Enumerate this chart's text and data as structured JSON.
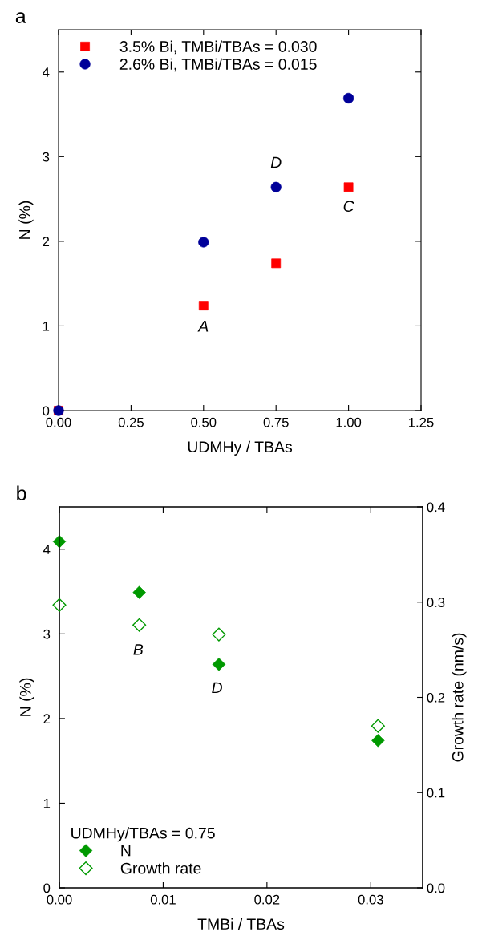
{
  "chart_data": [
    {
      "type": "scatter",
      "title": "a",
      "xlabel": "UDMHy / TBAs",
      "ylabel": "N (%)",
      "xlim": [
        0,
        1.25
      ],
      "xticks": [
        "0.00",
        0.25,
        "0.50",
        0.75,
        "1.00",
        1.25
      ],
      "ylim": [
        0,
        4.5
      ],
      "yticks": [
        0,
        1,
        2,
        3,
        4
      ],
      "legend": "top left",
      "grid": false,
      "series": [
        {
          "name": "3.5% Bi, TMBi/TBAs = 0.030",
          "color": "#ff0000",
          "marker": "square",
          "x": [
            0,
            0.5,
            0.75,
            1.0
          ],
          "values": [
            0,
            1.24,
            1.74,
            2.64
          ]
        },
        {
          "name": "2.6% Bi, TMBi/TBAs = 0.015",
          "color": "#000099",
          "marker": "circle",
          "x": [
            0,
            0.5,
            0.75,
            1.0
          ],
          "values": [
            0,
            1.99,
            2.64,
            3.69
          ]
        }
      ],
      "annotations": [
        "A",
        "D",
        "C"
      ]
    },
    {
      "type": "scatter",
      "title": "b",
      "xlabel": "TMBi / TBAs",
      "ylabel": "N (%)",
      "y2label": "Growth rate (nm/s)",
      "xlim": [
        0,
        0.035
      ],
      "xticks": [
        "0.00",
        0.01,
        0.02,
        0.03
      ],
      "ylim": [
        0,
        4.5
      ],
      "yticks": [
        0,
        1,
        2,
        3,
        4
      ],
      "y2lim": [
        0,
        0.4
      ],
      "y2ticks": [
        "0.0",
        0.1,
        0.2,
        0.3,
        0.4
      ],
      "legend": "bottom left",
      "legend_title": "UDMHy/TBAs = 0.75",
      "grid": false,
      "series": [
        {
          "name": "N",
          "color": "#009900",
          "marker": "diamond",
          "x": [
            0,
            0.0077,
            0.01537,
            0.0307
          ],
          "values": [
            4.09,
            3.49,
            2.64,
            1.74
          ]
        },
        {
          "name": "Growth rate",
          "color": "#009900",
          "marker": "diamond",
          "axis": "y2",
          "x": [
            0,
            0.0077,
            0.01537,
            0.0307
          ],
          "values": [
            0.297,
            0.276,
            0.266,
            0.17
          ]
        }
      ],
      "annotations": [
        "B",
        "D"
      ]
    }
  ]
}
